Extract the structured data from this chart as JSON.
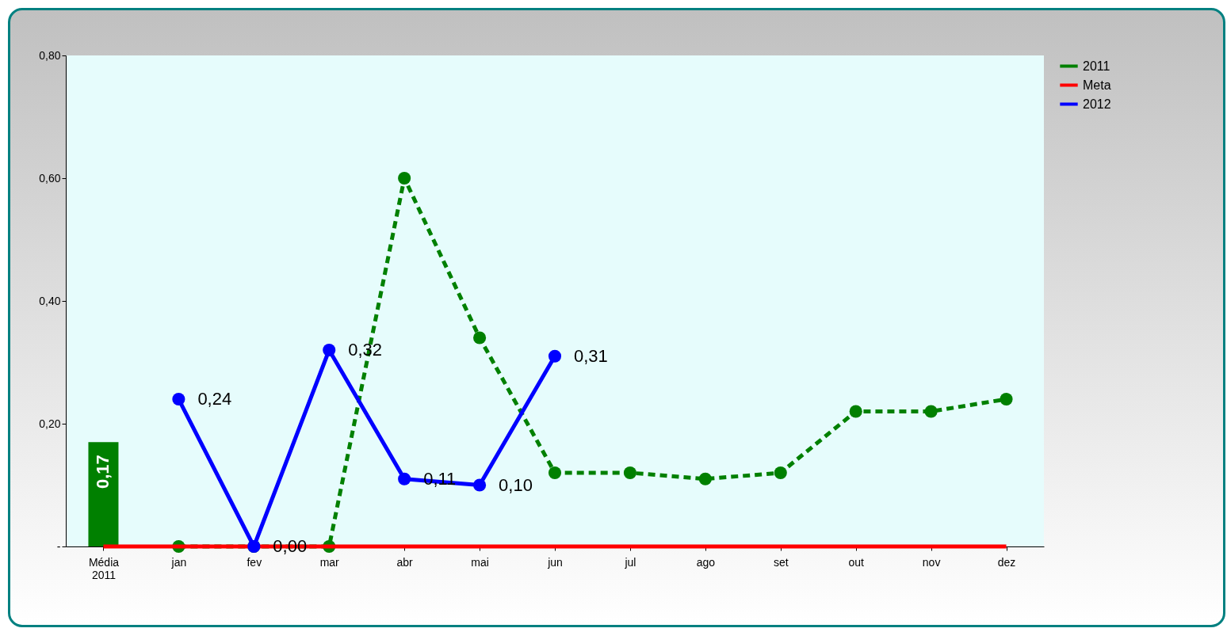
{
  "chart_data": {
    "type": "line",
    "categories": [
      "Média\n2011",
      "jan",
      "fev",
      "mar",
      "abr",
      "mai",
      "jun",
      "jul",
      "ago",
      "set",
      "out",
      "nov",
      "dez"
    ],
    "ylim": [
      0,
      0.8
    ],
    "yticks": [
      {
        "value": 0,
        "label": "-"
      },
      {
        "value": 0.2,
        "label": "0,20"
      },
      {
        "value": 0.4,
        "label": "0,40"
      },
      {
        "value": 0.6,
        "label": "0,60"
      },
      {
        "value": 0.8,
        "label": "0,80"
      }
    ],
    "grid": false,
    "legend": "right",
    "series": [
      {
        "type": "bar",
        "color": "#008000",
        "values": [
          0.17,
          null,
          null,
          null,
          null,
          null,
          null,
          null,
          null,
          null,
          null,
          null,
          null
        ],
        "value_labels": [
          "0,17",
          null,
          null,
          null,
          null,
          null,
          null,
          null,
          null,
          null,
          null,
          null,
          null
        ]
      },
      {
        "name": "2011",
        "color": "#008000",
        "line_style": "dashed",
        "marker": "circle",
        "values": [
          null,
          0,
          0,
          0,
          0.6,
          0.34,
          0.12,
          0.12,
          0.11,
          0.12,
          0.22,
          0.22,
          0.24
        ]
      },
      {
        "name": "Meta",
        "color": "#ff0000",
        "line_style": "solid",
        "marker": "none",
        "values": [
          0,
          0,
          0,
          0,
          0,
          0,
          0,
          0,
          0,
          0,
          0,
          0,
          0
        ]
      },
      {
        "name": "2012",
        "color": "#0000ff",
        "line_style": "solid",
        "marker": "circle",
        "values": [
          null,
          0.24,
          0,
          0.32,
          0.11,
          0.1,
          0.31,
          null,
          null,
          null,
          null,
          null,
          null
        ],
        "value_labels": [
          null,
          "0,24",
          "0,00",
          "0,32",
          "0,11",
          "0,10",
          "0,31",
          null,
          null,
          null,
          null,
          null,
          null
        ]
      }
    ]
  }
}
